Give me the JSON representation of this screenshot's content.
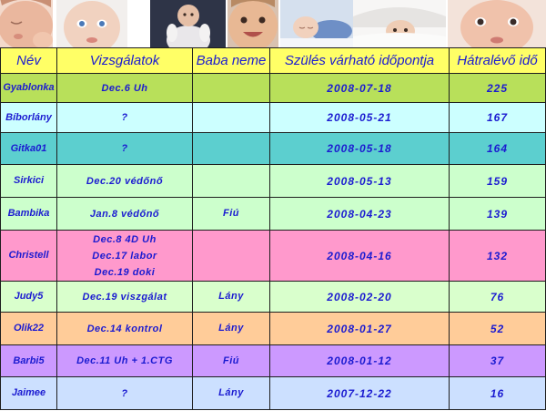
{
  "table": {
    "header_color": "#ffff66",
    "text_color": "#1b1bd1",
    "headers": [
      "Név",
      "Vizsgálatok",
      "Baba neme",
      "Szülés várható időpontja",
      "Hátralévő idő"
    ],
    "rows": [
      {
        "name": "Gyablonka",
        "exams": [
          "Dec.6 Uh"
        ],
        "gender": "",
        "due_date": "2008-07-18",
        "days_remaining": 225,
        "color": "#b8e05a"
      },
      {
        "name": "Bíborlány",
        "exams": [
          "?"
        ],
        "gender": "",
        "due_date": "2008-05-21",
        "days_remaining": 167,
        "color": "#ccffff"
      },
      {
        "name": "Gitka01",
        "exams": [
          "?"
        ],
        "gender": "",
        "due_date": "2008-05-18",
        "days_remaining": 164,
        "color": "#5ccfcf"
      },
      {
        "name": "Sirkici",
        "exams": [
          "Dec.20 védőnő"
        ],
        "gender": "",
        "due_date": "2008-05-13",
        "days_remaining": 159,
        "color": "#ccffcc"
      },
      {
        "name": "Bambika",
        "exams": [
          "Jan.8 védőnő"
        ],
        "gender": "Fiú",
        "due_date": "2008-04-23",
        "days_remaining": 139,
        "color": "#ccffcc"
      },
      {
        "name": "Christell",
        "exams": [
          "Dec.8 4D Uh",
          "Dec.17 labor",
          "Dec.19 doki"
        ],
        "gender": "",
        "due_date": "2008-04-16",
        "days_remaining": 132,
        "color": "#ff99cc"
      },
      {
        "name": "Judy5",
        "exams": [
          "Dec.19 viszgálat"
        ],
        "gender": "Lány",
        "due_date": "2008-02-20",
        "days_remaining": 76,
        "color": "#d9ffcc"
      },
      {
        "name": "Olik22",
        "exams": [
          "Dec.14 kontrol"
        ],
        "gender": "Lány",
        "due_date": "2008-01-27",
        "days_remaining": 52,
        "color": "#ffcc99"
      },
      {
        "name": "Barbi5",
        "exams": [
          "Dec.11 Uh + 1.CTG"
        ],
        "gender": "Fiú",
        "due_date": "2008-01-12",
        "days_remaining": 37,
        "color": "#cc99ff"
      },
      {
        "name": "Jaimee",
        "exams": [
          "?"
        ],
        "gender": "Lány",
        "due_date": "2007-12-22",
        "days_remaining": 16,
        "color": "#cce0ff"
      }
    ]
  }
}
